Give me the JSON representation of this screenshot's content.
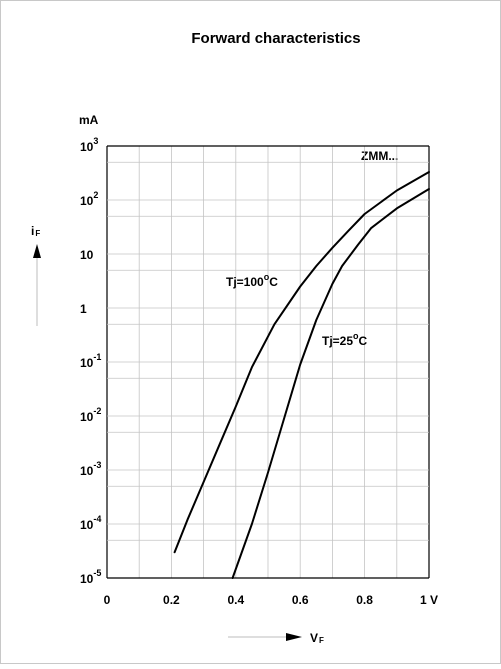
{
  "chart_data": {
    "type": "line",
    "title": "Forward characteristics",
    "device_label": "ZMM...",
    "y_unit": "mA",
    "y_axis_symbol": {
      "base": "i",
      "sub": "F"
    },
    "x_axis_symbol": {
      "base": "V",
      "sub": "F"
    },
    "y_scale": "log",
    "xlim": [
      0,
      1.0
    ],
    "ylim": [
      1e-05,
      1000
    ],
    "grid": true,
    "x_ticks": [
      {
        "v": 0,
        "label": "0"
      },
      {
        "v": 0.2,
        "label": "0.2"
      },
      {
        "v": 0.4,
        "label": "0.4"
      },
      {
        "v": 0.6,
        "label": "0.6"
      },
      {
        "v": 0.8,
        "label": "0.8"
      },
      {
        "v": 1.0,
        "label": "1 V"
      }
    ],
    "y_ticks": [
      {
        "v": 1000,
        "base": "10",
        "exp": "3"
      },
      {
        "v": 100,
        "base": "10",
        "exp": "2"
      },
      {
        "v": 10,
        "base": "10",
        "exp": ""
      },
      {
        "v": 1,
        "base": "1",
        "exp": ""
      },
      {
        "v": 0.1,
        "base": "10",
        "exp": "-1"
      },
      {
        "v": 0.01,
        "base": "10",
        "exp": "-2"
      },
      {
        "v": 0.001,
        "base": "10",
        "exp": "-3"
      },
      {
        "v": 0.0001,
        "base": "10",
        "exp": "-4"
      },
      {
        "v": 1e-05,
        "base": "10",
        "exp": "-5"
      }
    ],
    "series": [
      {
        "label_main": "Tj=100",
        "label_sup": "o",
        "label_unit": "C",
        "points": [
          [
            0.21,
            3e-05
          ],
          [
            0.25,
            0.00012
          ],
          [
            0.3,
            0.0006
          ],
          [
            0.35,
            0.003
          ],
          [
            0.4,
            0.015
          ],
          [
            0.45,
            0.08
          ],
          [
            0.52,
            0.5
          ],
          [
            0.6,
            2.5
          ],
          [
            0.65,
            6
          ],
          [
            0.7,
            13
          ],
          [
            0.75,
            27
          ],
          [
            0.8,
            55
          ],
          [
            0.9,
            150
          ],
          [
            1.0,
            330
          ]
        ]
      },
      {
        "label_main": "Tj=25",
        "label_sup": "o",
        "label_unit": "C",
        "points": [
          [
            0.39,
            1e-05
          ],
          [
            0.45,
            0.0001
          ],
          [
            0.5,
            0.0009
          ],
          [
            0.55,
            0.009
          ],
          [
            0.6,
            0.09
          ],
          [
            0.65,
            0.6
          ],
          [
            0.7,
            2.8
          ],
          [
            0.73,
            6
          ],
          [
            0.78,
            15
          ],
          [
            0.82,
            30
          ],
          [
            0.9,
            70
          ],
          [
            1.0,
            160
          ]
        ]
      }
    ]
  }
}
